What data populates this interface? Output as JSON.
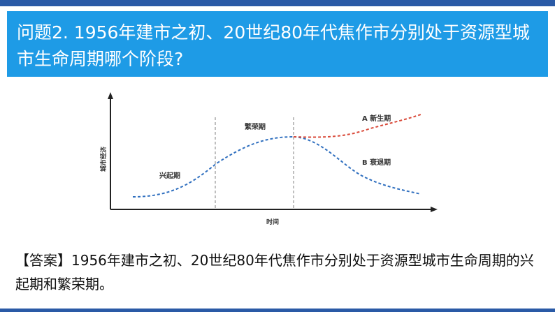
{
  "question": {
    "text": "问题2. 1956年建市之初、20世纪80年代焦作市分别处于资源型城市生命周期哪个阶段?"
  },
  "diagram": {
    "y_axis_label": "城市经济",
    "x_axis_label": "时间",
    "stage_rise": "兴起期",
    "stage_prosper": "繁荣期",
    "branch_new": "A 新生期",
    "branch_decline": "B 衰退期",
    "colors": {
      "main_curve": "#2f6fbf",
      "new_branch": "#d94a3a",
      "divider": "#aaaaaa"
    }
  },
  "answer": {
    "text": "【答案】1956年建市之初、20世纪80年代焦作市分别处于资源型城市生命周期的兴起期和繁荣期。"
  }
}
